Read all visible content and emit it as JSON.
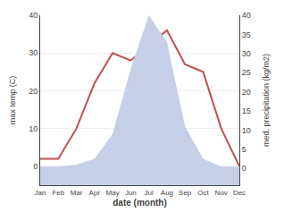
{
  "chart_data": {
    "type": "line",
    "xlabel": "date (month)",
    "ylabel": "max temp (C)",
    "y2label": "med. precipitation (kg/m2)",
    "categories": [
      "Jan",
      "Feb",
      "Mar",
      "Apr",
      "May",
      "Jun",
      "Jul",
      "Aug",
      "Sep",
      "Oct",
      "Nov",
      "Dec"
    ],
    "series": [
      {
        "type": "line",
        "color": "#c0504d",
        "values": [
          2,
          2,
          10,
          22,
          30,
          28,
          32,
          36,
          27,
          25,
          10,
          0
        ]
      },
      {
        "type": "area",
        "axis": "y2",
        "color": "#c5cfe8",
        "values": [
          0.5,
          0.5,
          1.0,
          2.5,
          9,
          26,
          40,
          33,
          11,
          2.5,
          0.5,
          0.5
        ]
      }
    ],
    "ylim": [
      -5,
      40
    ],
    "yticks": [
      0,
      10,
      20,
      30,
      40
    ],
    "y2lim": [
      -4.375,
      40
    ],
    "y2ticks": [
      0,
      5,
      10,
      15,
      20,
      25,
      30,
      35,
      40
    ],
    "grid": true
  }
}
